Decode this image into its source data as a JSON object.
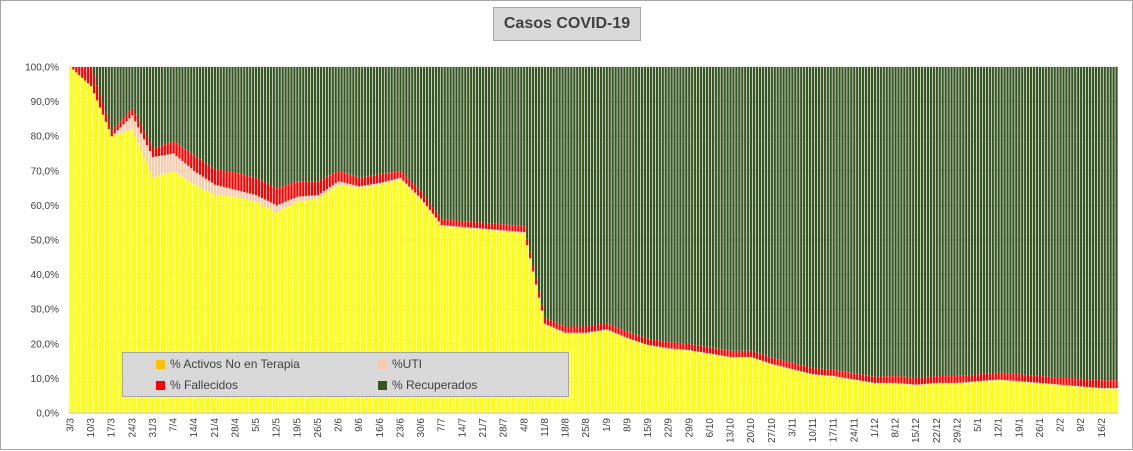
{
  "chart_data": {
    "type": "bar",
    "stacked": true,
    "title": "Casos  COVID-19",
    "xlabel": "",
    "ylabel": "",
    "ylim": [
      0,
      100
    ],
    "yticks": [
      "0,0%",
      "10,0%",
      "20,0%",
      "30,0%",
      "40,0%",
      "50,0%",
      "60,0%",
      "70,0%",
      "80,0%",
      "90,0%",
      "100,0%"
    ],
    "xticks": [
      "3/3",
      "10/3",
      "17/3",
      "24/3",
      "31/3",
      "7/4",
      "14/4",
      "21/4",
      "28/4",
      "5/5",
      "12/5",
      "19/5",
      "26/5",
      "2/6",
      "9/6",
      "16/6",
      "23/6",
      "30/6",
      "7/7",
      "14/7",
      "21/7",
      "28/7",
      "4/8",
      "11/8",
      "18/8",
      "25/8",
      "1/9",
      "8/9",
      "15/9",
      "22/9",
      "29/9",
      "6/10",
      "13/10",
      "20/10",
      "27/10",
      "3/11",
      "10/11",
      "17/11",
      "24/11",
      "1/12",
      "8/12",
      "15/12",
      "22/12",
      "29/12",
      "5/1",
      "12/1",
      "19/1",
      "26/1",
      "2/2",
      "9/2",
      "16/2"
    ],
    "days": 356,
    "legend": "bottom-left",
    "series": [
      {
        "name": "% Activos No en Terapia",
        "color": "#ffff00",
        "legend_color": "#ffc000"
      },
      {
        "name": "%UTI",
        "color": "#f8cbad"
      },
      {
        "name": "% Fallecidos",
        "color": "#ff0000"
      },
      {
        "name": "% Recuperados",
        "color": "#375623"
      }
    ],
    "weekly_values": [
      {
        "date": "3/3",
        "activos": 100.0,
        "uti": 0.0,
        "fallecidos": 0.0,
        "recuperados": 0.0
      },
      {
        "date": "10/3",
        "activos": 94.5,
        "uti": 0.0,
        "fallecidos": 5.5,
        "recuperados": 0.0
      },
      {
        "date": "17/3",
        "activos": 80.0,
        "uti": 0.0,
        "fallecidos": 1.5,
        "recuperados": 18.5
      },
      {
        "date": "24/3",
        "activos": 82.0,
        "uti": 4.0,
        "fallecidos": 2.0,
        "recuperados": 12.0
      },
      {
        "date": "31/3",
        "activos": 68.0,
        "uti": 6.0,
        "fallecidos": 2.5,
        "recuperados": 23.5
      },
      {
        "date": "7/4",
        "activos": 70.0,
        "uti": 5.0,
        "fallecidos": 3.5,
        "recuperados": 21.5
      },
      {
        "date": "14/4",
        "activos": 66.0,
        "uti": 4.0,
        "fallecidos": 4.5,
        "recuperados": 25.5
      },
      {
        "date": "21/4",
        "activos": 63.0,
        "uti": 3.0,
        "fallecidos": 4.5,
        "recuperados": 29.5
      },
      {
        "date": "28/4",
        "activos": 62.5,
        "uti": 2.0,
        "fallecidos": 5.0,
        "recuperados": 30.5
      },
      {
        "date": "5/5",
        "activos": 61.0,
        "uti": 2.0,
        "fallecidos": 5.0,
        "recuperados": 32.0
      },
      {
        "date": "12/5",
        "activos": 58.0,
        "uti": 2.0,
        "fallecidos": 5.0,
        "recuperados": 35.0
      },
      {
        "date": "19/5",
        "activos": 61.0,
        "uti": 1.5,
        "fallecidos": 4.5,
        "recuperados": 33.0
      },
      {
        "date": "26/5",
        "activos": 62.0,
        "uti": 1.0,
        "fallecidos": 4.0,
        "recuperados": 33.0
      },
      {
        "date": "2/6",
        "activos": 66.0,
        "uti": 1.0,
        "fallecidos": 3.0,
        "recuperados": 30.0
      },
      {
        "date": "9/6",
        "activos": 65.0,
        "uti": 0.5,
        "fallecidos": 2.5,
        "recuperados": 32.0
      },
      {
        "date": "16/6",
        "activos": 66.0,
        "uti": 0.5,
        "fallecidos": 2.5,
        "recuperados": 31.0
      },
      {
        "date": "23/6",
        "activos": 67.5,
        "uti": 0.5,
        "fallecidos": 2.0,
        "recuperados": 30.0
      },
      {
        "date": "30/6",
        "activos": 61.5,
        "uti": 0.5,
        "fallecidos": 2.0,
        "recuperados": 36.0
      },
      {
        "date": "7/7",
        "activos": 54.0,
        "uti": 0.3,
        "fallecidos": 1.7,
        "recuperados": 44.0
      },
      {
        "date": "14/7",
        "activos": 53.5,
        "uti": 0.3,
        "fallecidos": 1.7,
        "recuperados": 44.5
      },
      {
        "date": "21/7",
        "activos": 53.0,
        "uti": 0.3,
        "fallecidos": 1.7,
        "recuperados": 45.0
      },
      {
        "date": "28/7",
        "activos": 52.5,
        "uti": 0.3,
        "fallecidos": 1.7,
        "recuperados": 45.5
      },
      {
        "date": "4/8",
        "activos": 52.0,
        "uti": 0.3,
        "fallecidos": 1.7,
        "recuperados": 46.0
      },
      {
        "date": "11/8",
        "activos": 25.5,
        "uti": 0.3,
        "fallecidos": 1.7,
        "recuperados": 72.5
      },
      {
        "date": "18/8",
        "activos": 23.0,
        "uti": 0.2,
        "fallecidos": 1.8,
        "recuperados": 75.0
      },
      {
        "date": "25/8",
        "activos": 23.0,
        "uti": 0.2,
        "fallecidos": 1.8,
        "recuperados": 75.0
      },
      {
        "date": "1/9",
        "activos": 24.0,
        "uti": 0.2,
        "fallecidos": 1.8,
        "recuperados": 74.0
      },
      {
        "date": "8/9",
        "activos": 21.5,
        "uti": 0.2,
        "fallecidos": 1.8,
        "recuperados": 76.5
      },
      {
        "date": "15/9",
        "activos": 19.5,
        "uti": 0.2,
        "fallecidos": 1.8,
        "recuperados": 78.5
      },
      {
        "date": "22/9",
        "activos": 18.5,
        "uti": 0.2,
        "fallecidos": 1.8,
        "recuperados": 79.5
      },
      {
        "date": "29/9",
        "activos": 18.0,
        "uti": 0.2,
        "fallecidos": 1.8,
        "recuperados": 80.0
      },
      {
        "date": "6/10",
        "activos": 17.0,
        "uti": 0.2,
        "fallecidos": 1.8,
        "recuperados": 81.0
      },
      {
        "date": "13/10",
        "activos": 16.0,
        "uti": 0.2,
        "fallecidos": 1.8,
        "recuperados": 82.0
      },
      {
        "date": "20/10",
        "activos": 16.0,
        "uti": 0.2,
        "fallecidos": 1.8,
        "recuperados": 82.0
      },
      {
        "date": "27/10",
        "activos": 14.0,
        "uti": 0.2,
        "fallecidos": 1.8,
        "recuperados": 84.0
      },
      {
        "date": "3/11",
        "activos": 12.5,
        "uti": 0.2,
        "fallecidos": 1.8,
        "recuperados": 85.5
      },
      {
        "date": "10/11",
        "activos": 11.0,
        "uti": 0.2,
        "fallecidos": 1.8,
        "recuperados": 87.0
      },
      {
        "date": "17/11",
        "activos": 10.5,
        "uti": 0.2,
        "fallecidos": 1.8,
        "recuperados": 87.5
      },
      {
        "date": "24/11",
        "activos": 9.5,
        "uti": 0.2,
        "fallecidos": 1.8,
        "recuperados": 88.5
      },
      {
        "date": "1/12",
        "activos": 8.5,
        "uti": 0.2,
        "fallecidos": 1.8,
        "recuperados": 89.5
      },
      {
        "date": "8/12",
        "activos": 8.5,
        "uti": 0.2,
        "fallecidos": 2.0,
        "recuperados": 89.3
      },
      {
        "date": "15/12",
        "activos": 8.0,
        "uti": 0.2,
        "fallecidos": 2.0,
        "recuperados": 89.8
      },
      {
        "date": "22/12",
        "activos": 8.5,
        "uti": 0.2,
        "fallecidos": 2.0,
        "recuperados": 89.3
      },
      {
        "date": "29/12",
        "activos": 8.5,
        "uti": 0.2,
        "fallecidos": 2.0,
        "recuperados": 89.3
      },
      {
        "date": "5/1",
        "activos": 9.0,
        "uti": 0.2,
        "fallecidos": 2.0,
        "recuperados": 88.8
      },
      {
        "date": "12/1",
        "activos": 9.5,
        "uti": 0.2,
        "fallecidos": 2.0,
        "recuperados": 88.3
      },
      {
        "date": "19/1",
        "activos": 9.0,
        "uti": 0.2,
        "fallecidos": 2.0,
        "recuperados": 88.8
      },
      {
        "date": "26/1",
        "activos": 8.5,
        "uti": 0.2,
        "fallecidos": 2.0,
        "recuperados": 89.3
      },
      {
        "date": "2/2",
        "activos": 8.0,
        "uti": 0.2,
        "fallecidos": 2.0,
        "recuperados": 89.8
      },
      {
        "date": "9/2",
        "activos": 7.5,
        "uti": 0.2,
        "fallecidos": 2.2,
        "recuperados": 90.1
      },
      {
        "date": "16/2",
        "activos": 7.0,
        "uti": 0.2,
        "fallecidos": 2.3,
        "recuperados": 90.5
      }
    ]
  }
}
